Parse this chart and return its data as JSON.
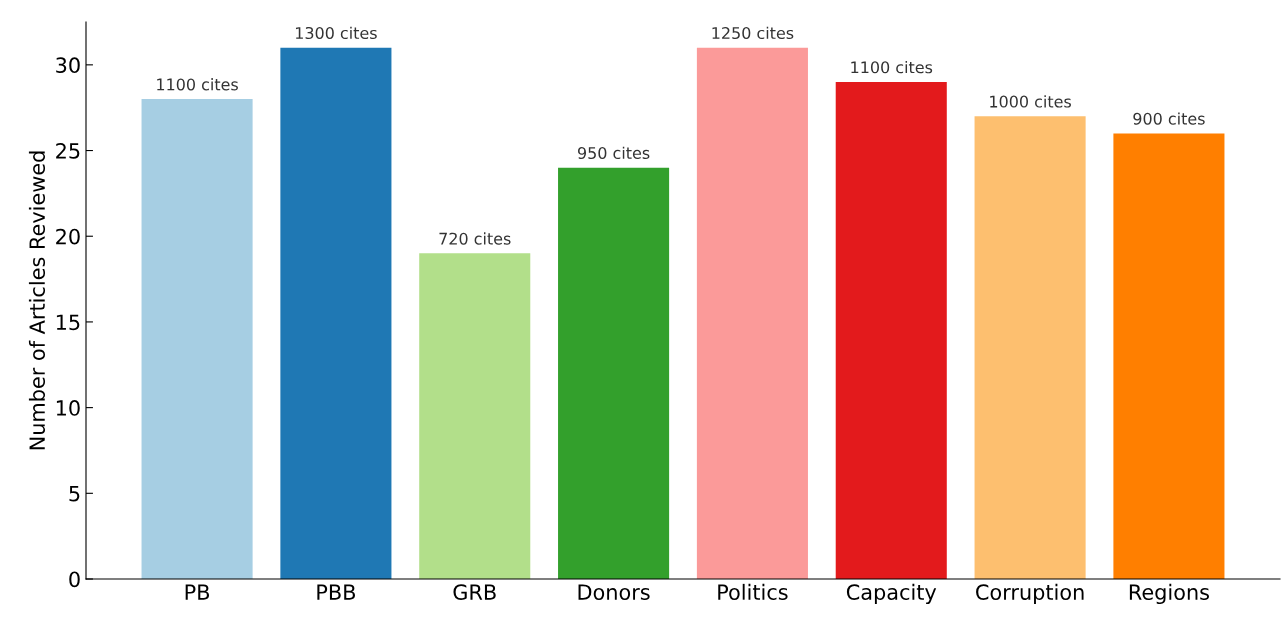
{
  "chart_data": {
    "type": "bar",
    "ylabel": "Number of Articles Reviewed",
    "categories": [
      "PB",
      "PBB",
      "GRB",
      "Donors",
      "Politics",
      "Capacity",
      "Corruption",
      "Regions"
    ],
    "values": [
      28,
      31,
      19,
      24,
      31,
      29,
      27,
      26
    ],
    "colors": [
      "#a6cee3",
      "#1f78b4",
      "#b2df8a",
      "#33a02c",
      "#fb9a99",
      "#e31a1c",
      "#fdbf6f",
      "#ff7f00"
    ],
    "annotations": [
      {
        "text": "1100 cites",
        "x": "PB",
        "y": 28
      },
      {
        "text": "1300 cites",
        "x": "PBB",
        "y": 31
      },
      {
        "text": "720 cites",
        "x": "GRB",
        "y": 19
      },
      {
        "text": "950 cites",
        "x": "Donors",
        "y": 24
      },
      {
        "text": "1250 cites",
        "x": "Politics",
        "y": 31
      },
      {
        "text": "1100 cites",
        "x": "Capacity",
        "y": 29
      },
      {
        "text": "1000 cites",
        "x": "Corruption",
        "y": 27
      },
      {
        "text": "900 cites",
        "x": "Regions",
        "y": 26
      }
    ],
    "ylim": [
      0,
      32.5
    ],
    "yticks": [
      0,
      5,
      10,
      15,
      20,
      25,
      30
    ],
    "grid": false,
    "legend": false
  }
}
